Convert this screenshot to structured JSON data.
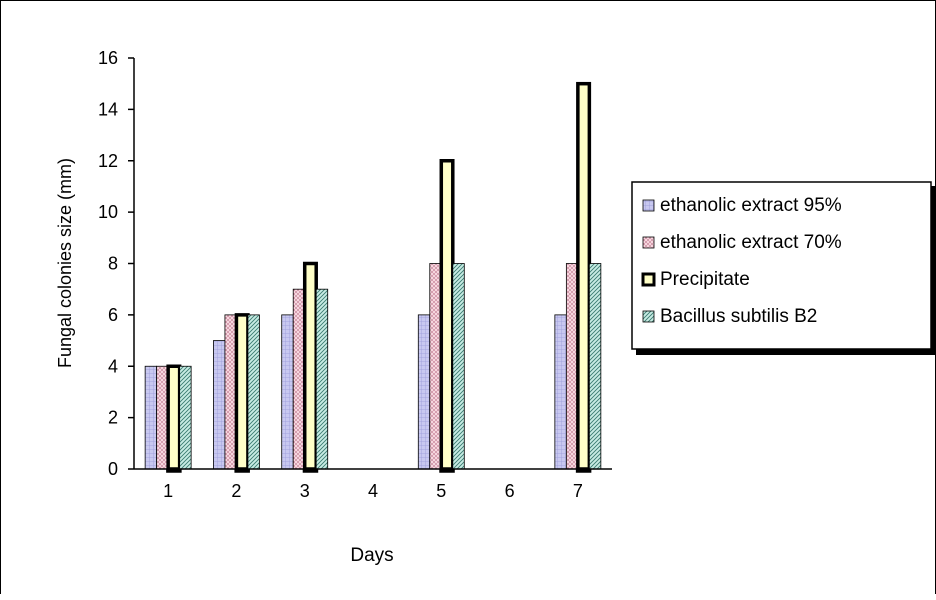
{
  "chart_data": {
    "type": "bar",
    "title": "",
    "xlabel": "Days",
    "ylabel": "Fungal colonies size (mm)",
    "categories": [
      "1",
      "2",
      "3",
      "4",
      "5",
      "6",
      "7"
    ],
    "ylim": [
      0,
      16
    ],
    "yticks": [
      0,
      2,
      4,
      6,
      8,
      10,
      12,
      14,
      16
    ],
    "grid": false,
    "legend_position": "right",
    "series": [
      {
        "name": "ethanolic extract 95%",
        "values": [
          4,
          5,
          6,
          null,
          6,
          null,
          6
        ],
        "color": "#c8c8f0",
        "pattern": "grid"
      },
      {
        "name": "ethanolic extract 70%",
        "values": [
          4,
          6,
          7,
          null,
          8,
          null,
          8
        ],
        "color": "#f2c8d4",
        "pattern": "dots"
      },
      {
        "name": "Precipitate",
        "values": [
          4,
          6,
          8,
          null,
          12,
          null,
          15
        ],
        "color": "#ffffc8",
        "pattern": "solid-thick"
      },
      {
        "name": "Bacillus subtilis B2",
        "values": [
          4,
          6,
          7,
          null,
          8,
          null,
          8
        ],
        "color": "#a8d8d0",
        "pattern": "diagonal"
      }
    ]
  }
}
